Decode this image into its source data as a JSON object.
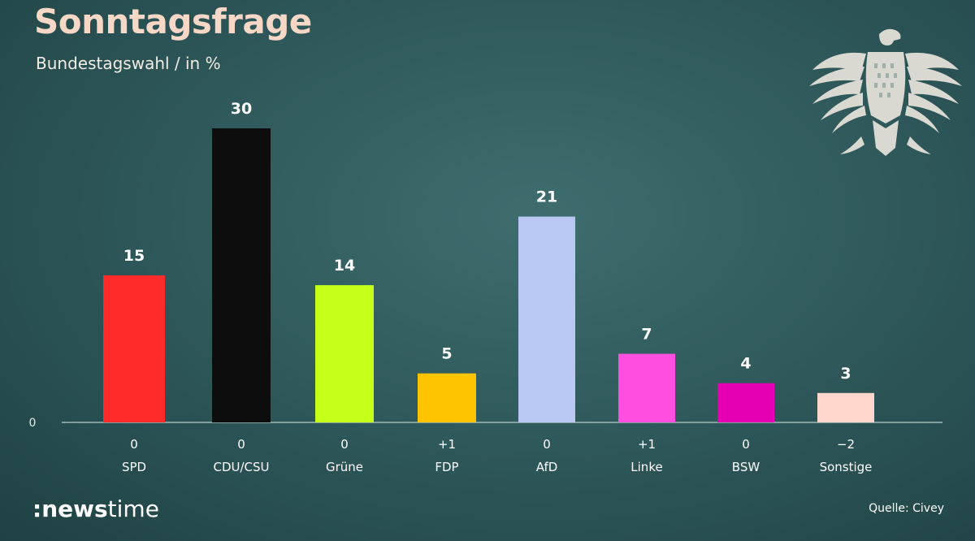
{
  "header": {
    "title": "Sonntagsfrage",
    "subtitle": "Bundestagswahl / in %"
  },
  "footer": {
    "brand_prefix": ":news",
    "brand_suffix": "time",
    "source": "Quelle: Civey"
  },
  "emblem": {
    "icon": "federal-eagle-icon",
    "color": "#e8e4dc"
  },
  "chart_data": {
    "type": "bar",
    "title": "Sonntagsfrage",
    "subtitle": "Bundestagswahl / in %",
    "categories": [
      "SPD",
      "CDU/CSU",
      "Grüne",
      "FDP",
      "AfD",
      "Linke",
      "BSW",
      "Sonstige"
    ],
    "values": [
      15,
      30,
      14,
      5,
      21,
      7,
      4,
      3
    ],
    "changes": [
      "0",
      "0",
      "0",
      "+1",
      "0",
      "+1",
      "0",
      "−2"
    ],
    "colors": [
      "#ff2a2a",
      "#0d0d0d",
      "#c5ff1a",
      "#ffc400",
      "#b8c8f2",
      "#ff4fe0",
      "#e600b4",
      "#ffd6cc"
    ],
    "y_baseline_label": "0",
    "ylim": [
      0,
      30
    ],
    "grid": false,
    "legend": "none"
  }
}
